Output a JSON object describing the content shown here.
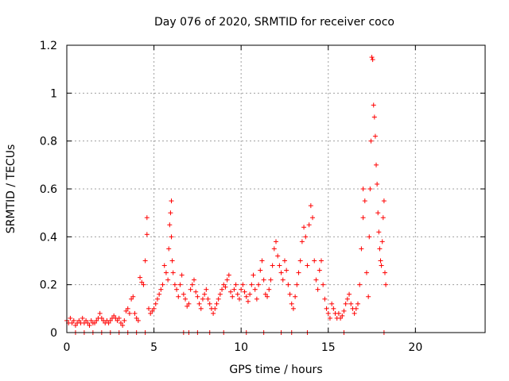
{
  "chart_data": {
    "type": "scatter",
    "title": "Day 076 of 2020, SRMTID for receiver coco",
    "xlabel": "GPS time / hours",
    "ylabel": "SRMTID / TECUs",
    "xlim": [
      0,
      24
    ],
    "ylim": [
      0,
      1.2
    ],
    "grid": true,
    "xticks": [
      0,
      5,
      10,
      15,
      20
    ],
    "xtick_labels": [
      "0",
      "5",
      "10",
      "15",
      "20"
    ],
    "yticks": [
      0,
      0.2,
      0.4,
      0.6,
      0.8,
      1.0,
      1.2
    ],
    "ytick_labels": [
      "0",
      "0.2",
      "0.4",
      "0.6",
      "0.8",
      "1",
      "1.2"
    ],
    "series": [
      {
        "name": "SRMTID",
        "marker": "plus",
        "color": "#ff0000",
        "points": [
          [
            0.0,
            0.05
          ],
          [
            0.1,
            0.04
          ],
          [
            0.2,
            0.06
          ],
          [
            0.3,
            0.04
          ],
          [
            0.4,
            0.05
          ],
          [
            0.5,
            0.03
          ],
          [
            0.6,
            0.04
          ],
          [
            0.7,
            0.05
          ],
          [
            0.8,
            0.04
          ],
          [
            0.9,
            0.06
          ],
          [
            1.0,
            0.04
          ],
          [
            1.1,
            0.05
          ],
          [
            1.2,
            0.04
          ],
          [
            1.3,
            0.03
          ],
          [
            1.4,
            0.05
          ],
          [
            1.5,
            0.04
          ],
          [
            1.6,
            0.04
          ],
          [
            1.7,
            0.05
          ],
          [
            1.8,
            0.06
          ],
          [
            1.9,
            0.08
          ],
          [
            2.0,
            0.06
          ],
          [
            2.1,
            0.05
          ],
          [
            2.2,
            0.04
          ],
          [
            2.3,
            0.05
          ],
          [
            2.4,
            0.04
          ],
          [
            2.5,
            0.05
          ],
          [
            2.6,
            0.06
          ],
          [
            2.7,
            0.07
          ],
          [
            2.8,
            0.06
          ],
          [
            2.9,
            0.05
          ],
          [
            3.0,
            0.06
          ],
          [
            3.1,
            0.04
          ],
          [
            3.2,
            0.03
          ],
          [
            3.3,
            0.05
          ],
          [
            3.4,
            0.09
          ],
          [
            3.5,
            0.1
          ],
          [
            3.6,
            0.08
          ],
          [
            3.7,
            0.14
          ],
          [
            3.8,
            0.15
          ],
          [
            3.9,
            0.08
          ],
          [
            4.0,
            0.06
          ],
          [
            4.1,
            0.05
          ],
          [
            4.2,
            0.23
          ],
          [
            4.3,
            0.21
          ],
          [
            4.4,
            0.2
          ],
          [
            4.5,
            0.3
          ],
          [
            4.6,
            0.41
          ],
          [
            4.6,
            0.48
          ],
          [
            4.7,
            0.1
          ],
          [
            4.8,
            0.08
          ],
          [
            4.9,
            0.09
          ],
          [
            5.0,
            0.1
          ],
          [
            5.1,
            0.12
          ],
          [
            5.2,
            0.14
          ],
          [
            5.3,
            0.16
          ],
          [
            5.4,
            0.18
          ],
          [
            5.5,
            0.2
          ],
          [
            5.6,
            0.28
          ],
          [
            5.7,
            0.25
          ],
          [
            5.8,
            0.22
          ],
          [
            5.85,
            0.35
          ],
          [
            5.9,
            0.45
          ],
          [
            5.95,
            0.5
          ],
          [
            6.0,
            0.55
          ],
          [
            6.0,
            0.4
          ],
          [
            6.05,
            0.3
          ],
          [
            6.1,
            0.25
          ],
          [
            6.2,
            0.2
          ],
          [
            6.3,
            0.18
          ],
          [
            6.4,
            0.15
          ],
          [
            6.5,
            0.2
          ],
          [
            6.6,
            0.24
          ],
          [
            6.7,
            0.16
          ],
          [
            6.8,
            0.14
          ],
          [
            6.9,
            0.11
          ],
          [
            7.0,
            0.12
          ],
          [
            7.1,
            0.18
          ],
          [
            7.2,
            0.2
          ],
          [
            7.3,
            0.22
          ],
          [
            7.4,
            0.17
          ],
          [
            7.5,
            0.15
          ],
          [
            7.6,
            0.12
          ],
          [
            7.7,
            0.1
          ],
          [
            7.8,
            0.14
          ],
          [
            7.9,
            0.16
          ],
          [
            8.0,
            0.18
          ],
          [
            8.1,
            0.14
          ],
          [
            8.2,
            0.12
          ],
          [
            8.3,
            0.1
          ],
          [
            8.4,
            0.08
          ],
          [
            8.5,
            0.1
          ],
          [
            8.6,
            0.12
          ],
          [
            8.7,
            0.14
          ],
          [
            8.8,
            0.16
          ],
          [
            8.9,
            0.18
          ],
          [
            9.0,
            0.2
          ],
          [
            9.1,
            0.19
          ],
          [
            9.2,
            0.22
          ],
          [
            9.3,
            0.24
          ],
          [
            9.4,
            0.17
          ],
          [
            9.5,
            0.15
          ],
          [
            9.6,
            0.18
          ],
          [
            9.7,
            0.2
          ],
          [
            9.8,
            0.16
          ],
          [
            9.9,
            0.14
          ],
          [
            10.0,
            0.18
          ],
          [
            10.1,
            0.2
          ],
          [
            10.2,
            0.17
          ],
          [
            10.3,
            0.15
          ],
          [
            10.4,
            0.13
          ],
          [
            10.5,
            0.16
          ],
          [
            10.6,
            0.2
          ],
          [
            10.7,
            0.24
          ],
          [
            10.8,
            0.18
          ],
          [
            10.9,
            0.14
          ],
          [
            11.0,
            0.2
          ],
          [
            11.1,
            0.26
          ],
          [
            11.2,
            0.3
          ],
          [
            11.3,
            0.22
          ],
          [
            11.4,
            0.16
          ],
          [
            11.5,
            0.15
          ],
          [
            11.6,
            0.18
          ],
          [
            11.7,
            0.22
          ],
          [
            11.8,
            0.28
          ],
          [
            11.9,
            0.35
          ],
          [
            12.0,
            0.38
          ],
          [
            12.1,
            0.32
          ],
          [
            12.2,
            0.28
          ],
          [
            12.3,
            0.25
          ],
          [
            12.4,
            0.22
          ],
          [
            12.5,
            0.3
          ],
          [
            12.6,
            0.26
          ],
          [
            12.7,
            0.2
          ],
          [
            12.8,
            0.16
          ],
          [
            12.9,
            0.12
          ],
          [
            13.0,
            0.1
          ],
          [
            13.1,
            0.15
          ],
          [
            13.2,
            0.2
          ],
          [
            13.3,
            0.25
          ],
          [
            13.4,
            0.3
          ],
          [
            13.5,
            0.38
          ],
          [
            13.6,
            0.44
          ],
          [
            13.7,
            0.4
          ],
          [
            13.8,
            0.28
          ],
          [
            13.9,
            0.45
          ],
          [
            14.0,
            0.53
          ],
          [
            14.1,
            0.48
          ],
          [
            14.2,
            0.3
          ],
          [
            14.3,
            0.22
          ],
          [
            14.4,
            0.18
          ],
          [
            14.5,
            0.26
          ],
          [
            14.6,
            0.3
          ],
          [
            14.7,
            0.2
          ],
          [
            14.8,
            0.14
          ],
          [
            14.9,
            0.1
          ],
          [
            15.0,
            0.08
          ],
          [
            15.1,
            0.06
          ],
          [
            15.2,
            0.12
          ],
          [
            15.3,
            0.1
          ],
          [
            15.4,
            0.08
          ],
          [
            15.5,
            0.06
          ],
          [
            15.6,
            0.08
          ],
          [
            15.7,
            0.06
          ],
          [
            15.8,
            0.07
          ],
          [
            15.9,
            0.09
          ],
          [
            16.0,
            0.12
          ],
          [
            16.1,
            0.14
          ],
          [
            16.2,
            0.16
          ],
          [
            16.3,
            0.12
          ],
          [
            16.4,
            0.1
          ],
          [
            16.5,
            0.08
          ],
          [
            16.6,
            0.1
          ],
          [
            16.7,
            0.12
          ],
          [
            16.8,
            0.2
          ],
          [
            16.9,
            0.35
          ],
          [
            17.0,
            0.48
          ],
          [
            17.0,
            0.6
          ],
          [
            17.1,
            0.55
          ],
          [
            17.2,
            0.25
          ],
          [
            17.3,
            0.15
          ],
          [
            17.35,
            0.4
          ],
          [
            17.4,
            0.6
          ],
          [
            17.45,
            0.8
          ],
          [
            17.5,
            1.15
          ],
          [
            17.55,
            1.14
          ],
          [
            17.6,
            0.95
          ],
          [
            17.65,
            0.9
          ],
          [
            17.7,
            0.82
          ],
          [
            17.75,
            0.7
          ],
          [
            17.8,
            0.62
          ],
          [
            17.85,
            0.5
          ],
          [
            17.9,
            0.42
          ],
          [
            17.95,
            0.35
          ],
          [
            18.0,
            0.3
          ],
          [
            18.05,
            0.28
          ],
          [
            18.1,
            0.38
          ],
          [
            18.15,
            0.48
          ],
          [
            18.2,
            0.55
          ],
          [
            18.25,
            0.25
          ],
          [
            18.3,
            0.2
          ],
          [
            0.5,
            0.0
          ],
          [
            1.0,
            0.0
          ],
          [
            1.5,
            0.0
          ],
          [
            2.0,
            0.0
          ],
          [
            2.5,
            0.0
          ],
          [
            3.0,
            0.0
          ],
          [
            3.5,
            0.0
          ],
          [
            4.0,
            0.0
          ],
          [
            4.5,
            0.0
          ],
          [
            6.7,
            0.0
          ],
          [
            7.0,
            0.0
          ],
          [
            7.5,
            0.0
          ],
          [
            8.2,
            0.0
          ],
          [
            9.0,
            0.0
          ],
          [
            10.3,
            0.0
          ],
          [
            11.3,
            0.0
          ],
          [
            12.3,
            0.0
          ],
          [
            12.9,
            0.0
          ],
          [
            13.8,
            0.0
          ],
          [
            15.9,
            0.0
          ],
          [
            18.2,
            0.0
          ]
        ]
      }
    ]
  }
}
